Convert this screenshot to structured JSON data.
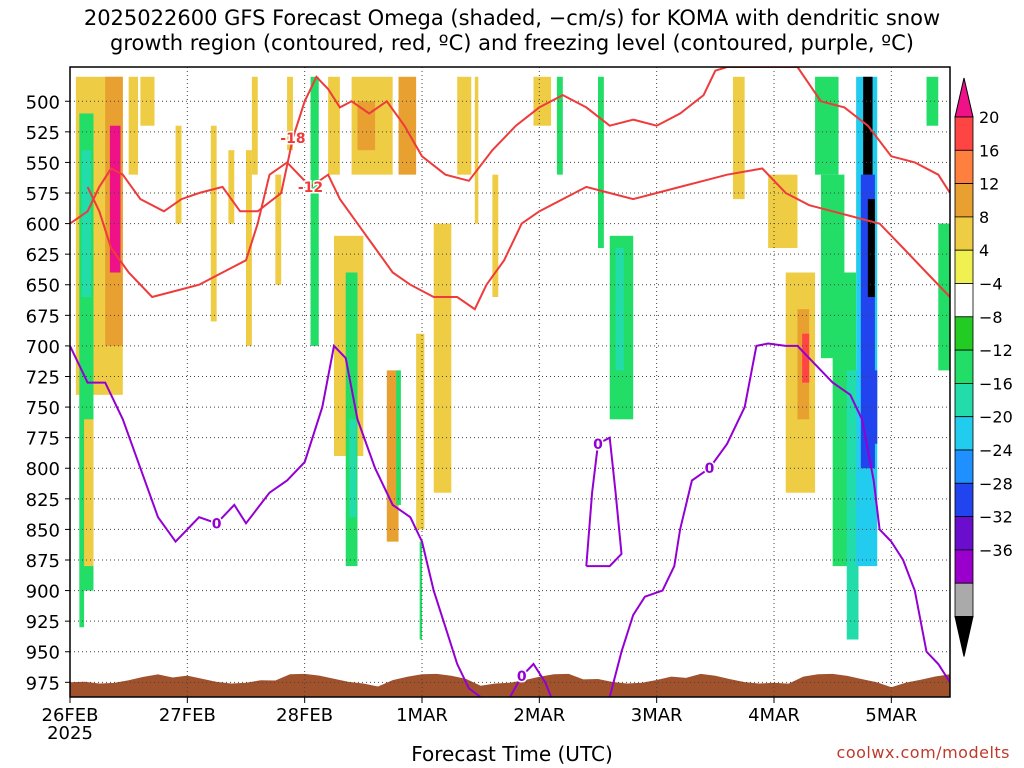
{
  "title_line1": "2025022600 GFS Forecast Omega (shaded, −cm/s) for KOMA with dendritic snow",
  "title_line2": "growth region (contoured, red, ºC) and freezing level (contoured, purple, ºC)",
  "credit": "coolwx.com/modelts",
  "chart_data": {
    "type": "heatmap",
    "title": "2025022600 GFS Forecast Omega (shaded, −cm/s) for KOMA with dendritic snow growth region (contoured, red, ºC) and freezing level (contoured, purple, ºC)",
    "xlabel": "Forecast Time (UTC)",
    "ylabel": "",
    "x_ticks": [
      "26FEB",
      "27FEB",
      "28FEB",
      "1MAR",
      "2MAR",
      "3MAR",
      "4MAR",
      "5MAR"
    ],
    "x_tick_year": "2025",
    "x_range_days": [
      0,
      7.5
    ],
    "y_ticks": [
      500,
      525,
      550,
      575,
      600,
      625,
      650,
      675,
      700,
      725,
      750,
      775,
      800,
      825,
      850,
      875,
      900,
      925,
      950,
      975
    ],
    "y_range_hpa": [
      472,
      987
    ],
    "grid": true,
    "colorbar": {
      "ticks": [
        "20",
        "16",
        "12",
        "8",
        "4",
        "−4",
        "−8",
        "−12",
        "−16",
        "−20",
        "−24",
        "−28",
        "−32",
        "−36"
      ],
      "colors": [
        "#ee1188",
        "#ff4444",
        "#ff7f3f",
        "#e8a030",
        "#eecc44",
        "#f0f050",
        "#ffffff",
        "#22cc22",
        "#22dd66",
        "#22ddaa",
        "#22ccee",
        "#1e90ff",
        "#2244ee",
        "#6a0dcc",
        "#9900cc",
        "#aaaaaa",
        "#000000"
      ]
    },
    "omega_cells": [
      {
        "t": 0.05,
        "t2": 0.45,
        "p1": 480,
        "p2": 740,
        "v": 6
      },
      {
        "t": 0.08,
        "t2": 0.2,
        "p1": 510,
        "p2": 900,
        "v": -8
      },
      {
        "t": 0.1,
        "t2": 0.18,
        "p1": 540,
        "p2": 660,
        "v": -14
      },
      {
        "t": 0.3,
        "t2": 0.45,
        "p1": 480,
        "p2": 700,
        "v": 10
      },
      {
        "t": 0.34,
        "t2": 0.43,
        "p1": 520,
        "p2": 640,
        "v": 22
      },
      {
        "t": 0.08,
        "t2": 0.12,
        "p1": 740,
        "p2": 930,
        "v": -8
      },
      {
        "t": 0.12,
        "t2": 0.2,
        "p1": 760,
        "p2": 880,
        "v": 5
      },
      {
        "t": 0.5,
        "t2": 0.58,
        "p1": 480,
        "p2": 560,
        "v": 5
      },
      {
        "t": 0.6,
        "t2": 0.72,
        "p1": 480,
        "p2": 520,
        "v": 6
      },
      {
        "t": 0.9,
        "t2": 0.95,
        "p1": 520,
        "p2": 600,
        "v": 5
      },
      {
        "t": 1.2,
        "t2": 1.25,
        "p1": 520,
        "p2": 680,
        "v": 5
      },
      {
        "t": 1.35,
        "t2": 1.4,
        "p1": 540,
        "p2": 600,
        "v": 5
      },
      {
        "t": 1.5,
        "t2": 1.55,
        "p1": 540,
        "p2": 700,
        "v": 5
      },
      {
        "t": 1.55,
        "t2": 1.6,
        "p1": 480,
        "p2": 560,
        "v": 5
      },
      {
        "t": 1.75,
        "t2": 1.8,
        "p1": 560,
        "p2": 650,
        "v": 5
      },
      {
        "t": 1.85,
        "t2": 1.9,
        "p1": 480,
        "p2": 540,
        "v": 5
      },
      {
        "t": 2.05,
        "t2": 2.1,
        "p1": 500,
        "p2": 560,
        "v": 5
      },
      {
        "t": 2.05,
        "t2": 2.12,
        "p1": 480,
        "p2": 700,
        "v": -8
      },
      {
        "t": 2.2,
        "t2": 2.3,
        "p1": 480,
        "p2": 560,
        "v": 5
      },
      {
        "t": 2.25,
        "t2": 2.5,
        "p1": 610,
        "p2": 790,
        "v": 6
      },
      {
        "t": 2.35,
        "t2": 2.45,
        "p1": 640,
        "p2": 880,
        "v": -10
      },
      {
        "t": 2.38,
        "t2": 2.44,
        "p1": 760,
        "p2": 840,
        "v": -14
      },
      {
        "t": 2.4,
        "t2": 2.75,
        "p1": 480,
        "p2": 560,
        "v": 6
      },
      {
        "t": 2.45,
        "t2": 2.6,
        "p1": 500,
        "p2": 540,
        "v": 10
      },
      {
        "t": 2.7,
        "t2": 2.8,
        "p1": 720,
        "p2": 860,
        "v": 8
      },
      {
        "t": 2.8,
        "t2": 2.95,
        "p1": 480,
        "p2": 560,
        "v": 10
      },
      {
        "t": 2.95,
        "t2": 3.02,
        "p1": 690,
        "p2": 850,
        "v": 5
      },
      {
        "t": 2.78,
        "t2": 2.82,
        "p1": 720,
        "p2": 830,
        "v": -8
      },
      {
        "t": 2.98,
        "t2": 3.0,
        "p1": 860,
        "p2": 940,
        "v": -8
      },
      {
        "t": 3.1,
        "t2": 3.25,
        "p1": 600,
        "p2": 820,
        "v": 5
      },
      {
        "t": 3.3,
        "t2": 3.42,
        "p1": 480,
        "p2": 560,
        "v": 5
      },
      {
        "t": 3.45,
        "t2": 3.48,
        "p1": 480,
        "p2": 600,
        "v": 5
      },
      {
        "t": 3.6,
        "t2": 3.65,
        "p1": 560,
        "p2": 660,
        "v": 5
      },
      {
        "t": 3.95,
        "t2": 4.1,
        "p1": 480,
        "p2": 520,
        "v": 5
      },
      {
        "t": 4.15,
        "t2": 4.2,
        "p1": 480,
        "p2": 560,
        "v": -8
      },
      {
        "t": 4.5,
        "t2": 4.55,
        "p1": 480,
        "p2": 620,
        "v": -8
      },
      {
        "t": 4.6,
        "t2": 4.8,
        "p1": 610,
        "p2": 760,
        "v": -8
      },
      {
        "t": 4.65,
        "t2": 4.72,
        "p1": 620,
        "p2": 720,
        "v": -14
      },
      {
        "t": 5.65,
        "t2": 5.75,
        "p1": 480,
        "p2": 580,
        "v": 5
      },
      {
        "t": 5.95,
        "t2": 6.2,
        "p1": 560,
        "p2": 620,
        "v": 5
      },
      {
        "t": 6.1,
        "t2": 6.35,
        "p1": 640,
        "p2": 820,
        "v": 6
      },
      {
        "t": 6.2,
        "t2": 6.3,
        "p1": 670,
        "p2": 760,
        "v": 10
      },
      {
        "t": 6.24,
        "t2": 6.3,
        "p1": 690,
        "p2": 730,
        "v": 18
      },
      {
        "t": 6.35,
        "t2": 6.55,
        "p1": 480,
        "p2": 560,
        "v": -8
      },
      {
        "t": 6.4,
        "t2": 6.6,
        "p1": 560,
        "p2": 710,
        "v": -8
      },
      {
        "t": 6.5,
        "t2": 6.7,
        "p1": 640,
        "p2": 880,
        "v": -8
      },
      {
        "t": 6.62,
        "t2": 6.72,
        "p1": 720,
        "p2": 940,
        "v": -12
      },
      {
        "t": 6.7,
        "t2": 6.88,
        "p1": 480,
        "p2": 880,
        "v": -18
      },
      {
        "t": 6.74,
        "t2": 6.86,
        "p1": 560,
        "p2": 800,
        "v": -26
      },
      {
        "t": 6.76,
        "t2": 6.84,
        "p1": 480,
        "p2": 560,
        "v": -40
      },
      {
        "t": 6.8,
        "t2": 6.86,
        "p1": 580,
        "p2": 660,
        "v": -40
      },
      {
        "t": 6.84,
        "t2": 6.88,
        "p1": 720,
        "p2": 780,
        "v": -24
      },
      {
        "t": 7.3,
        "t2": 7.4,
        "p1": 480,
        "p2": 520,
        "v": -8
      },
      {
        "t": 7.4,
        "t2": 7.5,
        "p1": 600,
        "p2": 720,
        "v": -8
      }
    ],
    "red_contours": [
      {
        "label": "-18",
        "points": [
          [
            0,
            600
          ],
          [
            0.15,
            590
          ],
          [
            0.25,
            570
          ],
          [
            0.35,
            555
          ],
          [
            0.45,
            560
          ],
          [
            0.6,
            580
          ],
          [
            0.8,
            590
          ],
          [
            0.95,
            580
          ],
          [
            1.1,
            575
          ],
          [
            1.3,
            570
          ],
          [
            1.45,
            590
          ],
          [
            1.6,
            590
          ],
          [
            1.8,
            575
          ],
          [
            1.9,
            530
          ],
          [
            2.0,
            500
          ],
          [
            2.1,
            480
          ],
          [
            2.2,
            490
          ],
          [
            2.3,
            505
          ],
          [
            2.4,
            500
          ],
          [
            2.55,
            510
          ],
          [
            2.7,
            500
          ],
          [
            2.85,
            520
          ],
          [
            3.0,
            545
          ],
          [
            3.2,
            560
          ],
          [
            3.4,
            565
          ],
          [
            3.6,
            540
          ],
          [
            3.8,
            520
          ],
          [
            4.0,
            505
          ],
          [
            4.2,
            495
          ],
          [
            4.4,
            505
          ],
          [
            4.6,
            520
          ],
          [
            4.8,
            515
          ],
          [
            5.0,
            520
          ],
          [
            5.2,
            510
          ],
          [
            5.4,
            495
          ],
          [
            5.5,
            475
          ],
          [
            5.6,
            472
          ],
          [
            5.8,
            472
          ],
          [
            6.2,
            472
          ],
          [
            6.4,
            500
          ],
          [
            6.6,
            505
          ],
          [
            6.8,
            520
          ],
          [
            7.0,
            545
          ],
          [
            7.2,
            550
          ],
          [
            7.4,
            560
          ],
          [
            7.5,
            575
          ]
        ]
      },
      {
        "label": "-12",
        "points": [
          [
            0.15,
            570
          ],
          [
            0.25,
            590
          ],
          [
            0.35,
            620
          ],
          [
            0.5,
            640
          ],
          [
            0.7,
            660
          ],
          [
            0.9,
            655
          ],
          [
            1.1,
            650
          ],
          [
            1.3,
            640
          ],
          [
            1.5,
            630
          ],
          [
            1.6,
            600
          ],
          [
            1.7,
            560
          ],
          [
            1.85,
            550
          ],
          [
            1.95,
            560
          ],
          [
            2.05,
            570
          ],
          [
            2.2,
            560
          ],
          [
            2.3,
            580
          ],
          [
            2.45,
            600
          ],
          [
            2.6,
            620
          ],
          [
            2.75,
            640
          ],
          [
            2.9,
            650
          ],
          [
            3.1,
            660
          ],
          [
            3.3,
            660
          ],
          [
            3.45,
            670
          ],
          [
            3.55,
            650
          ],
          [
            3.7,
            630
          ],
          [
            3.85,
            600
          ],
          [
            4.0,
            590
          ],
          [
            4.2,
            580
          ],
          [
            4.4,
            570
          ],
          [
            4.6,
            575
          ],
          [
            4.8,
            580
          ],
          [
            5.0,
            575
          ],
          [
            5.2,
            570
          ],
          [
            5.4,
            565
          ],
          [
            5.6,
            560
          ],
          [
            5.9,
            555
          ],
          [
            6.1,
            575
          ],
          [
            6.3,
            585
          ],
          [
            6.5,
            590
          ],
          [
            6.7,
            595
          ],
          [
            6.9,
            600
          ],
          [
            7.1,
            620
          ],
          [
            7.3,
            640
          ],
          [
            7.5,
            660
          ]
        ]
      }
    ],
    "purple_contours": [
      {
        "label": "0",
        "points": [
          [
            0,
            700
          ],
          [
            0.15,
            730
          ],
          [
            0.3,
            730
          ],
          [
            0.45,
            760
          ],
          [
            0.6,
            800
          ],
          [
            0.75,
            840
          ],
          [
            0.9,
            860
          ],
          [
            1.1,
            840
          ],
          [
            1.25,
            845
          ],
          [
            1.4,
            830
          ],
          [
            1.5,
            845
          ],
          [
            1.7,
            820
          ],
          [
            1.85,
            810
          ],
          [
            2.0,
            795
          ],
          [
            2.15,
            750
          ],
          [
            2.25,
            700
          ],
          [
            2.35,
            710
          ],
          [
            2.45,
            760
          ],
          [
            2.6,
            800
          ],
          [
            2.75,
            830
          ],
          [
            2.9,
            840
          ],
          [
            3.0,
            860
          ],
          [
            3.1,
            900
          ],
          [
            3.2,
            930
          ],
          [
            3.3,
            960
          ],
          [
            3.4,
            980
          ],
          [
            3.5,
            987
          ]
        ]
      },
      {
        "label": "0",
        "points": [
          [
            3.75,
            987
          ],
          [
            3.85,
            970
          ],
          [
            3.95,
            960
          ],
          [
            4.05,
            975
          ],
          [
            4.1,
            987
          ]
        ]
      },
      {
        "label": "0",
        "points": [
          [
            4.4,
            880
          ],
          [
            4.45,
            820
          ],
          [
            4.5,
            780
          ],
          [
            4.6,
            775
          ],
          [
            4.65,
            820
          ],
          [
            4.7,
            870
          ],
          [
            4.6,
            880
          ],
          [
            4.5,
            880
          ],
          [
            4.4,
            880
          ]
        ]
      },
      {
        "label": "0",
        "points": [
          [
            4.6,
            987
          ],
          [
            4.7,
            950
          ],
          [
            4.8,
            920
          ],
          [
            4.9,
            905
          ],
          [
            5.05,
            900
          ],
          [
            5.15,
            880
          ],
          [
            5.2,
            850
          ],
          [
            5.3,
            810
          ],
          [
            5.45,
            800
          ],
          [
            5.6,
            780
          ],
          [
            5.75,
            750
          ],
          [
            5.85,
            700
          ],
          [
            5.95,
            698
          ],
          [
            6.1,
            700
          ],
          [
            6.2,
            700
          ],
          [
            6.35,
            715
          ],
          [
            6.5,
            730
          ],
          [
            6.65,
            740
          ],
          [
            6.75,
            760
          ],
          [
            6.85,
            810
          ],
          [
            6.9,
            850
          ],
          [
            7.0,
            860
          ],
          [
            7.1,
            875
          ],
          [
            7.2,
            900
          ],
          [
            7.3,
            950
          ],
          [
            7.4,
            960
          ],
          [
            7.5,
            975
          ]
        ]
      }
    ]
  }
}
